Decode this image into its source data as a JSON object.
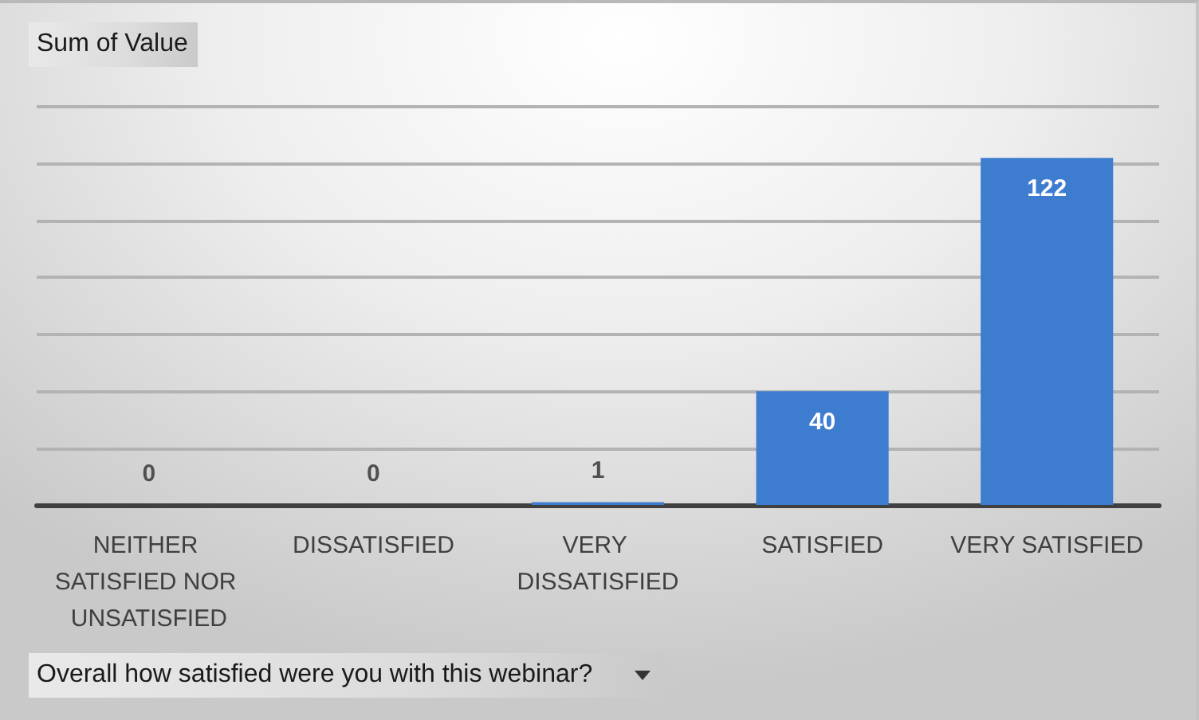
{
  "chart_data": {
    "type": "bar",
    "ylabel": "Sum of Value",
    "xlabel": "Overall how satisfied were you with this webinar?",
    "categories": [
      "NEITHER SATISFIED NOR UNSATISFIED",
      "DISSATISFIED",
      "VERY DISSATISFIED",
      "SATISFIED",
      "VERY SATISFIED"
    ],
    "values": [
      0,
      0,
      1,
      40,
      122
    ],
    "color": "#3d7ccf",
    "ylim": [
      0,
      140
    ],
    "yticks": [
      {
        "value": 0,
        "label": null
      },
      {
        "value": 20,
        "label": null
      },
      {
        "value": 40,
        "label": null
      },
      {
        "value": 60,
        "label": null
      },
      {
        "value": 80,
        "label": null
      },
      {
        "value": 100,
        "label": null
      },
      {
        "value": 120,
        "label": null
      },
      {
        "value": 140,
        "label": null
      }
    ],
    "grid": "y",
    "tick_labels": "x",
    "data_labels": true
  }
}
